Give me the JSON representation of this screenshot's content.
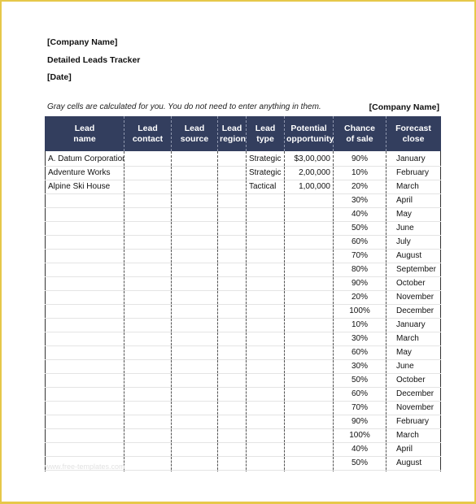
{
  "header": {
    "company": "[Company Name]",
    "title": "Detailed Leads Tracker",
    "date": "[Date]"
  },
  "note": "Gray cells are calculated for you. You do not need to enter anything in them.",
  "company_right": "[Company Name]",
  "columns": [
    [
      "Lead",
      "name"
    ],
    [
      "Lead",
      "contact"
    ],
    [
      "Lead",
      "source"
    ],
    [
      "Lead",
      "region"
    ],
    [
      "Lead",
      "type"
    ],
    [
      "Potential",
      "opportunity"
    ],
    [
      "Chance",
      "of sale"
    ],
    [
      "Forecast",
      "close"
    ]
  ],
  "rows": [
    [
      "A. Datum Corporation",
      "",
      "",
      "",
      "Strategic",
      "$3,00,000",
      "90%",
      "January"
    ],
    [
      "Adventure Works",
      "",
      "",
      "",
      "Strategic",
      "2,00,000",
      "10%",
      "February"
    ],
    [
      "Alpine Ski House",
      "",
      "",
      "",
      "Tactical",
      "1,00,000",
      "20%",
      "March"
    ],
    [
      "",
      "",
      "",
      "",
      "",
      "",
      "30%",
      "April"
    ],
    [
      "",
      "",
      "",
      "",
      "",
      "",
      "40%",
      "May"
    ],
    [
      "",
      "",
      "",
      "",
      "",
      "",
      "50%",
      "June"
    ],
    [
      "",
      "",
      "",
      "",
      "",
      "",
      "60%",
      "July"
    ],
    [
      "",
      "",
      "",
      "",
      "",
      "",
      "70%",
      "August"
    ],
    [
      "",
      "",
      "",
      "",
      "",
      "",
      "80%",
      "September"
    ],
    [
      "",
      "",
      "",
      "",
      "",
      "",
      "90%",
      "October"
    ],
    [
      "",
      "",
      "",
      "",
      "",
      "",
      "20%",
      "November"
    ],
    [
      "",
      "",
      "",
      "",
      "",
      "",
      "100%",
      "December"
    ],
    [
      "",
      "",
      "",
      "",
      "",
      "",
      "10%",
      "January"
    ],
    [
      "",
      "",
      "",
      "",
      "",
      "",
      "30%",
      "March"
    ],
    [
      "",
      "",
      "",
      "",
      "",
      "",
      "60%",
      "May"
    ],
    [
      "",
      "",
      "",
      "",
      "",
      "",
      "30%",
      "June"
    ],
    [
      "",
      "",
      "",
      "",
      "",
      "",
      "50%",
      "October"
    ],
    [
      "",
      "",
      "",
      "",
      "",
      "",
      "60%",
      "December"
    ],
    [
      "",
      "",
      "",
      "",
      "",
      "",
      "70%",
      "November"
    ],
    [
      "",
      "",
      "",
      "",
      "",
      "",
      "90%",
      "February"
    ],
    [
      "",
      "",
      "",
      "",
      "",
      "",
      "100%",
      "March"
    ],
    [
      "",
      "",
      "",
      "",
      "",
      "",
      "40%",
      "April"
    ],
    [
      "",
      "",
      "",
      "",
      "",
      "",
      "50%",
      "August"
    ],
    [
      "",
      "",
      "",
      "",
      "",
      "",
      "",
      ""
    ]
  ],
  "watermark": "www.free-templates.com"
}
